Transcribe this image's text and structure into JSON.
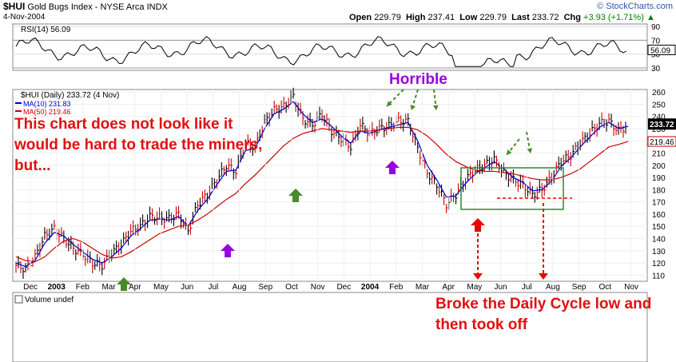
{
  "header": {
    "symbol": "$HUI",
    "name": "Gold Bugs Index - NYSE Arca",
    "suffix": "INDX",
    "date": "4-Nov-2004",
    "open_label": "Open",
    "open": "229.79",
    "high_label": "High",
    "high": "237.41",
    "low_label": "Low",
    "low": "229.79",
    "last_label": "Last",
    "last": "233.72",
    "chg_label": "Chg",
    "chg": "+3.93 (+1.71%)",
    "chg_arrow": "▲",
    "logo": "© StockCharts.com"
  },
  "rsi_panel": {
    "label": "RSI(14) 56.09",
    "ticks": [
      "90",
      "70",
      "50",
      "30"
    ],
    "current": "56.09"
  },
  "price_panel": {
    "legend_title": "$HUI (Daily) 233.72 (4 Nov)",
    "legend_ma10": "MA(10) 231.83",
    "legend_ma50": "MA(50) 219.46",
    "last_tag": "233.72",
    "ma50_tag": "219.46"
  },
  "volume_panel": {
    "label": "Volume undef"
  },
  "annotations": {
    "main": "This chart does not look like it would be hard to trade the miners, but...",
    "horrible": "Horrible",
    "broke": "Broke the Daily Cycle low and then took off"
  },
  "colors": {
    "price_up": "#000000",
    "price_down": "#cc0000",
    "ma10": "#0000cc",
    "ma50": "#cc0000",
    "rsi_line": "#000000",
    "purple_arrow": "#9900dd",
    "green_arrow": "#4a8a2a",
    "red_arrow": "#ee0000",
    "box": "#2a8a2a"
  },
  "chart_data": {
    "type": "line",
    "x_labels": [
      "Dec",
      "2003",
      "Feb",
      "Mar",
      "Apr",
      "May",
      "Jun",
      "Jul",
      "Aug",
      "Sep",
      "Oct",
      "Nov",
      "Dec",
      "2004",
      "Feb",
      "Mar",
      "Apr",
      "May",
      "Jun",
      "Jul",
      "Aug",
      "Sep",
      "Oct",
      "Nov"
    ],
    "y_ticks": [
      110,
      120,
      130,
      140,
      150,
      160,
      170,
      180,
      190,
      200,
      210,
      220,
      230,
      240,
      250,
      260
    ],
    "ylim": [
      105,
      262
    ],
    "series": [
      {
        "name": "$HUI (Daily)",
        "values": [
          118,
          115,
          125,
          142,
          148,
          140,
          132,
          127,
          120,
          118,
          128,
          135,
          146,
          150,
          158,
          157,
          156,
          160,
          146,
          168,
          176,
          188,
          200,
          195,
          218,
          215,
          235,
          245,
          248,
          256,
          238,
          233,
          242,
          228,
          222,
          215,
          233,
          226,
          230,
          232,
          236,
          236,
          214,
          194,
          184,
          168,
          176,
          188,
          196,
          200,
          205,
          194,
          188,
          184,
          176,
          180,
          190,
          203,
          208,
          218,
          226,
          234,
          236,
          228,
          233
        ]
      },
      {
        "name": "MA(10)",
        "values": [
          120,
          117,
          122,
          136,
          145,
          142,
          135,
          129,
          123,
          120,
          125,
          132,
          142,
          148,
          155,
          156,
          155,
          158,
          150,
          163,
          172,
          184,
          195,
          196,
          212,
          214,
          230,
          242,
          246,
          252,
          242,
          235,
          238,
          232,
          224,
          218,
          228,
          226,
          229,
          231,
          233,
          235,
          220,
          200,
          188,
          174,
          175,
          185,
          193,
          198,
          203,
          197,
          190,
          186,
          179,
          180,
          187,
          199,
          206,
          215,
          223,
          231,
          235,
          230,
          231.83
        ]
      },
      {
        "name": "MA(50)",
        "values": [
          125,
          122,
          121,
          125,
          132,
          138,
          140,
          137,
          132,
          127,
          124,
          125,
          129,
          134,
          139,
          144,
          147,
          150,
          151,
          155,
          160,
          166,
          172,
          177,
          185,
          192,
          200,
          208,
          216,
          222,
          226,
          228,
          230,
          229,
          228,
          227,
          228,
          228,
          229,
          230,
          231,
          231,
          229,
          224,
          217,
          209,
          203,
          199,
          196,
          195,
          195,
          194,
          193,
          191,
          189,
          188,
          188,
          190,
          193,
          197,
          203,
          209,
          215,
          217,
          219.46
        ]
      }
    ],
    "rsi": {
      "name": "RSI(14)",
      "last": 56.09,
      "ylim": [
        30,
        90
      ]
    }
  }
}
